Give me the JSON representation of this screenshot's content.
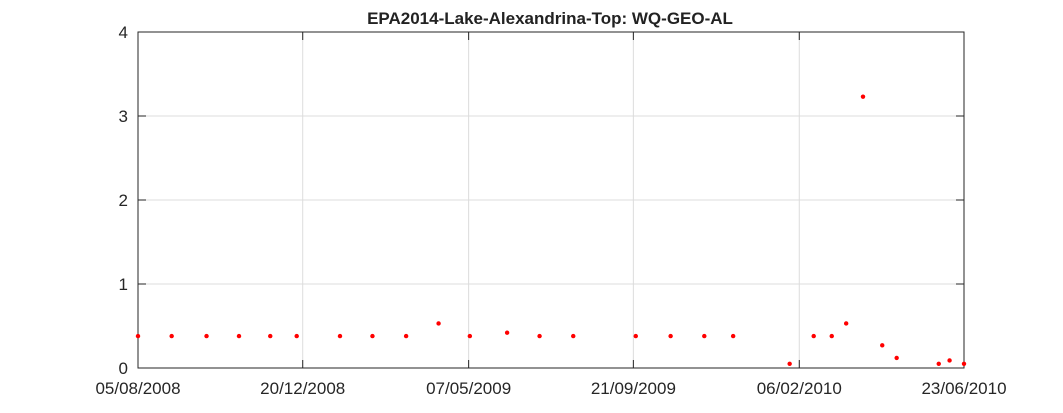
{
  "chart_data": {
    "type": "scatter",
    "title": "EPA2014-Lake-Alexandrina-Top: WQ-GEO-AL",
    "xlabel": "",
    "ylabel": "",
    "x_type": "date",
    "xlim": [
      "2008-08-05",
      "2010-06-23"
    ],
    "ylim": [
      0,
      4
    ],
    "x_ticks": [
      "05/08/2008",
      "20/12/2008",
      "07/05/2009",
      "21/09/2009",
      "06/02/2010",
      "23/06/2010"
    ],
    "x_tick_dates": [
      "2008-08-05",
      "2008-12-20",
      "2009-05-07",
      "2009-09-21",
      "2010-02-06",
      "2010-06-23"
    ],
    "y_ticks": [
      0,
      1,
      2,
      3,
      4
    ],
    "grid": true,
    "marker_color": "#ff0000",
    "series": [
      {
        "points": [
          {
            "x": "2008-08-05",
            "y": 0.38
          },
          {
            "x": "2008-09-02",
            "y": 0.38
          },
          {
            "x": "2008-10-01",
            "y": 0.38
          },
          {
            "x": "2008-10-28",
            "y": 0.38
          },
          {
            "x": "2008-11-23",
            "y": 0.38
          },
          {
            "x": "2008-12-15",
            "y": 0.38
          },
          {
            "x": "2009-01-20",
            "y": 0.38
          },
          {
            "x": "2009-02-16",
            "y": 0.38
          },
          {
            "x": "2009-03-16",
            "y": 0.38
          },
          {
            "x": "2009-04-12",
            "y": 0.53
          },
          {
            "x": "2009-05-08",
            "y": 0.38
          },
          {
            "x": "2009-06-08",
            "y": 0.42
          },
          {
            "x": "2009-07-05",
            "y": 0.38
          },
          {
            "x": "2009-08-02",
            "y": 0.38
          },
          {
            "x": "2009-09-23",
            "y": 0.38
          },
          {
            "x": "2009-10-22",
            "y": 0.38
          },
          {
            "x": "2009-11-19",
            "y": 0.38
          },
          {
            "x": "2009-12-13",
            "y": 0.38
          },
          {
            "x": "2010-01-29",
            "y": 0.05
          },
          {
            "x": "2010-02-18",
            "y": 0.38
          },
          {
            "x": "2010-03-05",
            "y": 0.38
          },
          {
            "x": "2010-03-17",
            "y": 0.53
          },
          {
            "x": "2010-03-31",
            "y": 3.23
          },
          {
            "x": "2010-04-16",
            "y": 0.27
          },
          {
            "x": "2010-04-28",
            "y": 0.12
          },
          {
            "x": "2010-06-02",
            "y": 0.05
          },
          {
            "x": "2010-06-11",
            "y": 0.09
          },
          {
            "x": "2010-06-23",
            "y": 0.05
          }
        ]
      }
    ]
  }
}
